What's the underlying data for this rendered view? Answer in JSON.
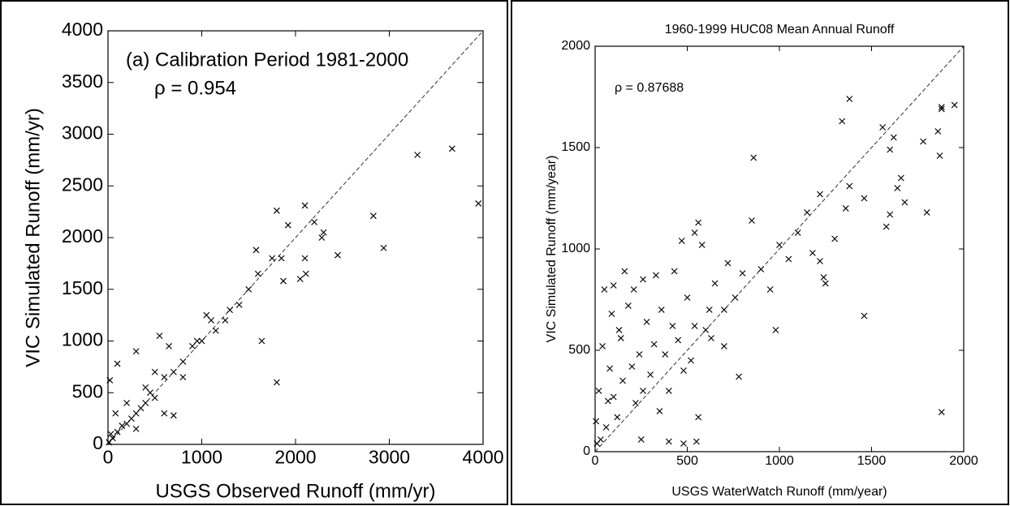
{
  "chart_data": [
    {
      "type": "scatter",
      "annotations": [
        "(a) Calibration Period 1981-2000",
        "ρ = 0.954"
      ],
      "xlabel": "USGS Observed Runoff (mm/yr)",
      "ylabel": "VIC Simulated Runoff (mm/yr)",
      "xlim": [
        0,
        4000
      ],
      "ylim": [
        0,
        4000
      ],
      "xticks": [
        0,
        1000,
        2000,
        3000,
        4000
      ],
      "yticks": [
        0,
        500,
        1000,
        1500,
        2000,
        2500,
        3000,
        3500,
        4000
      ],
      "color": "#000000",
      "x": [
        3950,
        3670,
        3300,
        2830,
        2940,
        2450,
        2300,
        2280,
        2200,
        2100,
        2100,
        2110,
        2050,
        1920,
        1800,
        1800,
        1640,
        1580,
        1750,
        1850,
        1870,
        1600,
        1500,
        1400,
        1300,
        1250,
        1100,
        1000,
        900,
        800,
        700,
        600,
        550,
        500,
        450,
        400,
        350,
        300,
        250,
        200,
        150,
        100,
        50,
        20,
        100,
        300,
        600,
        700,
        500,
        400,
        200,
        80,
        30,
        10,
        300,
        800,
        950,
        1150,
        1050,
        650
      ],
      "values": [
        2330,
        2860,
        2800,
        2210,
        1900,
        1830,
        2050,
        2000,
        2150,
        2310,
        1800,
        1650,
        1600,
        2120,
        2260,
        600,
        1000,
        1880,
        1800,
        1800,
        1580,
        1650,
        1500,
        1350,
        1300,
        1200,
        1200,
        1000,
        950,
        800,
        700,
        650,
        1050,
        450,
        500,
        400,
        350,
        300,
        250,
        200,
        180,
        120,
        60,
        620,
        780,
        900,
        300,
        280,
        700,
        550,
        400,
        300,
        100,
        20,
        150,
        650,
        1000,
        1100,
        1250,
        950
      ]
    },
    {
      "type": "scatter",
      "title": "1960-1999 HUC08 Mean Annual Runoff",
      "annotations": [
        "ρ = 0.87688"
      ],
      "xlabel": "USGS WaterWatch Runoff (mm/year)",
      "ylabel": "VIC Simulated Runoff (mm/year)",
      "xlim": [
        0,
        2000
      ],
      "ylim": [
        0,
        2000
      ],
      "xticks": [
        0,
        500,
        1000,
        1500,
        2000
      ],
      "yticks": [
        0,
        500,
        1000,
        1500,
        2000
      ],
      "color": "#000000",
      "x": [
        1950,
        1880,
        1880,
        1860,
        1870,
        1800,
        1780,
        1880,
        1680,
        1640,
        1660,
        1600,
        1620,
        1560,
        1600,
        1580,
        1460,
        1460,
        1380,
        1340,
        1380,
        1360,
        1300,
        1250,
        1240,
        1220,
        1220,
        1180,
        1150,
        1100,
        1050,
        1000,
        980,
        950,
        900,
        860,
        850,
        800,
        780,
        760,
        720,
        700,
        650,
        620,
        600,
        560,
        580,
        540,
        550,
        560,
        520,
        500,
        480,
        450,
        420,
        400,
        380,
        350,
        320,
        300,
        280,
        260,
        240,
        220,
        200,
        180,
        160,
        150,
        140,
        120,
        100,
        100,
        80,
        60,
        50,
        40,
        30,
        20,
        10,
        5,
        470,
        430,
        360,
        330,
        260,
        210,
        130,
        90,
        70,
        400,
        480,
        700,
        630,
        540,
        250
      ],
      "values": [
        1710,
        1690,
        1700,
        1580,
        1460,
        1180,
        1530,
        195,
        1230,
        1300,
        1350,
        1490,
        1550,
        1600,
        1170,
        1110,
        670,
        1250,
        1740,
        1630,
        1310,
        1200,
        1050,
        830,
        860,
        940,
        1270,
        980,
        1180,
        1080,
        950,
        1020,
        600,
        800,
        900,
        1450,
        1140,
        880,
        370,
        760,
        930,
        520,
        830,
        700,
        600,
        1130,
        1020,
        1080,
        50,
        170,
        450,
        760,
        400,
        550,
        620,
        300,
        480,
        200,
        530,
        380,
        640,
        300,
        480,
        240,
        420,
        720,
        890,
        350,
        560,
        170,
        820,
        270,
        410,
        120,
        800,
        520,
        60,
        300,
        40,
        150,
        1040,
        890,
        700,
        870,
        850,
        800,
        600,
        680,
        250,
        50,
        40,
        700,
        560,
        620,
        60
      ]
    }
  ]
}
